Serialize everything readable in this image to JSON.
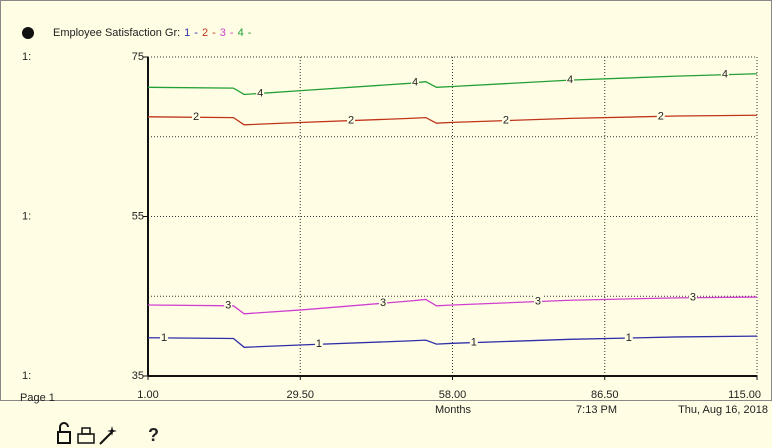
{
  "chart_data": {
    "type": "line",
    "title": "Employee Satisfaction Gr:",
    "legend_separator": "-",
    "axis_prefix": "1:",
    "x_label": "Months",
    "page_label": "Page 1",
    "time_label": "7:13 PM",
    "date_label": "Thu, Aug 16, 2018",
    "help_label": "?",
    "xlim": [
      1,
      115
    ],
    "xticks": [
      {
        "value": 1,
        "label": "1.00"
      },
      {
        "value": 29.5,
        "label": "29.50"
      },
      {
        "value": 58,
        "label": "58.00"
      },
      {
        "value": 86.5,
        "label": "86.50"
      },
      {
        "value": 115,
        "label": "115.00"
      }
    ],
    "ylim": [
      35,
      75
    ],
    "yticks": [
      35,
      55,
      75
    ],
    "ygrid": [
      45,
      55,
      65,
      75
    ],
    "x": [
      1,
      17,
      19,
      30,
      50,
      53,
      55,
      58,
      80,
      100,
      115
    ],
    "series": [
      {
        "name": "1",
        "color": "#2f2fa8",
        "values": [
          39.8,
          39.7,
          38.6,
          38.9,
          39.4,
          39.5,
          39.0,
          39.1,
          39.6,
          39.9,
          40.0
        ]
      },
      {
        "name": "2",
        "color": "#c0341a",
        "values": [
          67.5,
          67.4,
          66.5,
          66.8,
          67.3,
          67.4,
          66.7,
          66.8,
          67.3,
          67.6,
          67.7
        ]
      },
      {
        "name": "3",
        "color": "#d040d0",
        "values": [
          43.9,
          43.8,
          42.8,
          43.3,
          44.4,
          44.6,
          43.8,
          43.9,
          44.5,
          44.8,
          44.9
        ]
      },
      {
        "name": "4",
        "color": "#22a035",
        "values": [
          71.2,
          71.1,
          70.3,
          70.8,
          71.7,
          71.9,
          71.2,
          71.3,
          72.1,
          72.6,
          72.9
        ]
      }
    ]
  }
}
